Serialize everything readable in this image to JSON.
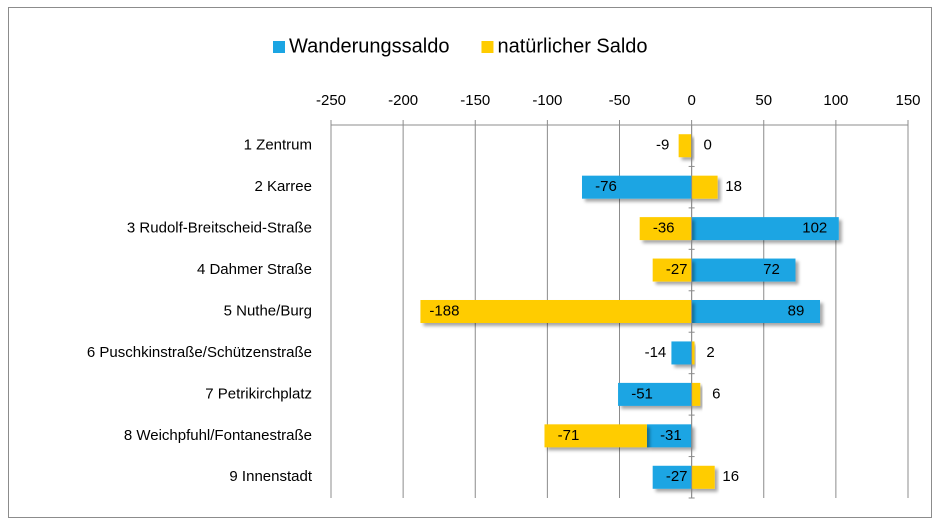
{
  "chart_data": {
    "type": "bar",
    "orientation": "horizontal",
    "stacked": true,
    "categories": [
      "1 Zentrum",
      "2 Karree",
      "3 Rudolf-Breitscheid-Straße",
      "4 Dahmer Straße",
      "5 Nuthe/Burg",
      "6 Puschkinstraße/Schützenstraße",
      "7 Petrikirchplatz",
      "8 Weichpfuhl/Fontanestraße",
      "9 Innenstadt"
    ],
    "series": [
      {
        "name": "Wanderungssaldo",
        "color": "#1ba5e3",
        "values": [
          0,
          -76,
          102,
          72,
          89,
          -14,
          -51,
          -31,
          -27
        ]
      },
      {
        "name": "natürlicher Saldo",
        "color": "#ffcc00",
        "values": [
          -9,
          18,
          -36,
          -27,
          -188,
          2,
          6,
          -71,
          16
        ]
      }
    ],
    "xlim": [
      -250,
      150
    ],
    "xticks": [
      -250,
      -200,
      -150,
      -100,
      -50,
      0,
      50,
      100,
      150
    ],
    "grid": true,
    "legend": "top"
  }
}
